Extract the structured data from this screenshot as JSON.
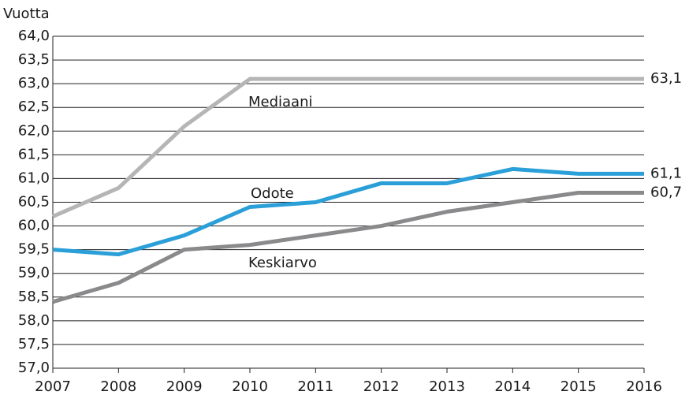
{
  "chart_data": {
    "type": "line",
    "y_axis_label": "Vuotta",
    "x": [
      2007,
      2008,
      2009,
      2010,
      2011,
      2012,
      2013,
      2014,
      2015,
      2016
    ],
    "xlim": [
      2007,
      2016
    ],
    "xticks": [
      2007,
      2008,
      2009,
      2010,
      2011,
      2012,
      2013,
      2014,
      2015,
      2016
    ],
    "ylim": [
      57,
      64
    ],
    "yticks": [
      {
        "value": 57,
        "label": "57,0"
      },
      {
        "value": 57.5,
        "label": "57,5"
      },
      {
        "value": 58,
        "label": "58,0"
      },
      {
        "value": 58.5,
        "label": "58,5"
      },
      {
        "value": 59,
        "label": "59,0"
      },
      {
        "value": 59.5,
        "label": "59,5"
      },
      {
        "value": 60,
        "label": "60,0"
      },
      {
        "value": 60.5,
        "label": "60,5"
      },
      {
        "value": 61,
        "label": "61,0"
      },
      {
        "value": 61.5,
        "label": "61,5"
      },
      {
        "value": 62,
        "label": "62,0"
      },
      {
        "value": 62.5,
        "label": "62,5"
      },
      {
        "value": 63,
        "label": "63,0"
      },
      {
        "value": 63.5,
        "label": "63,5"
      },
      {
        "value": 64,
        "label": "64,0"
      }
    ],
    "grid": true,
    "series": [
      {
        "name": "Mediaani",
        "color": "#b5b5b5",
        "values": [
          60.2,
          60.8,
          62.1,
          63.1,
          63.1,
          63.1,
          63.1,
          63.1,
          63.1,
          63.1
        ],
        "value_labels": [
          null,
          null,
          null,
          null,
          null,
          null,
          null,
          null,
          null,
          "63,1"
        ]
      },
      {
        "name": "Odote",
        "color": "#2a9fd8",
        "values": [
          59.5,
          59.4,
          59.8,
          60.4,
          60.5,
          60.9,
          60.9,
          61.2,
          61.1,
          61.1
        ],
        "value_labels": [
          null,
          null,
          null,
          null,
          null,
          null,
          null,
          null,
          null,
          "61,1"
        ]
      },
      {
        "name": "Keskiarvo",
        "color": "#8a8a8c",
        "values": [
          58.4,
          58.8,
          59.5,
          59.6,
          59.8,
          60.0,
          60.3,
          60.5,
          60.7,
          60.7
        ],
        "value_labels": [
          null,
          null,
          null,
          null,
          null,
          null,
          null,
          null,
          null,
          "60,7"
        ]
      }
    ]
  }
}
